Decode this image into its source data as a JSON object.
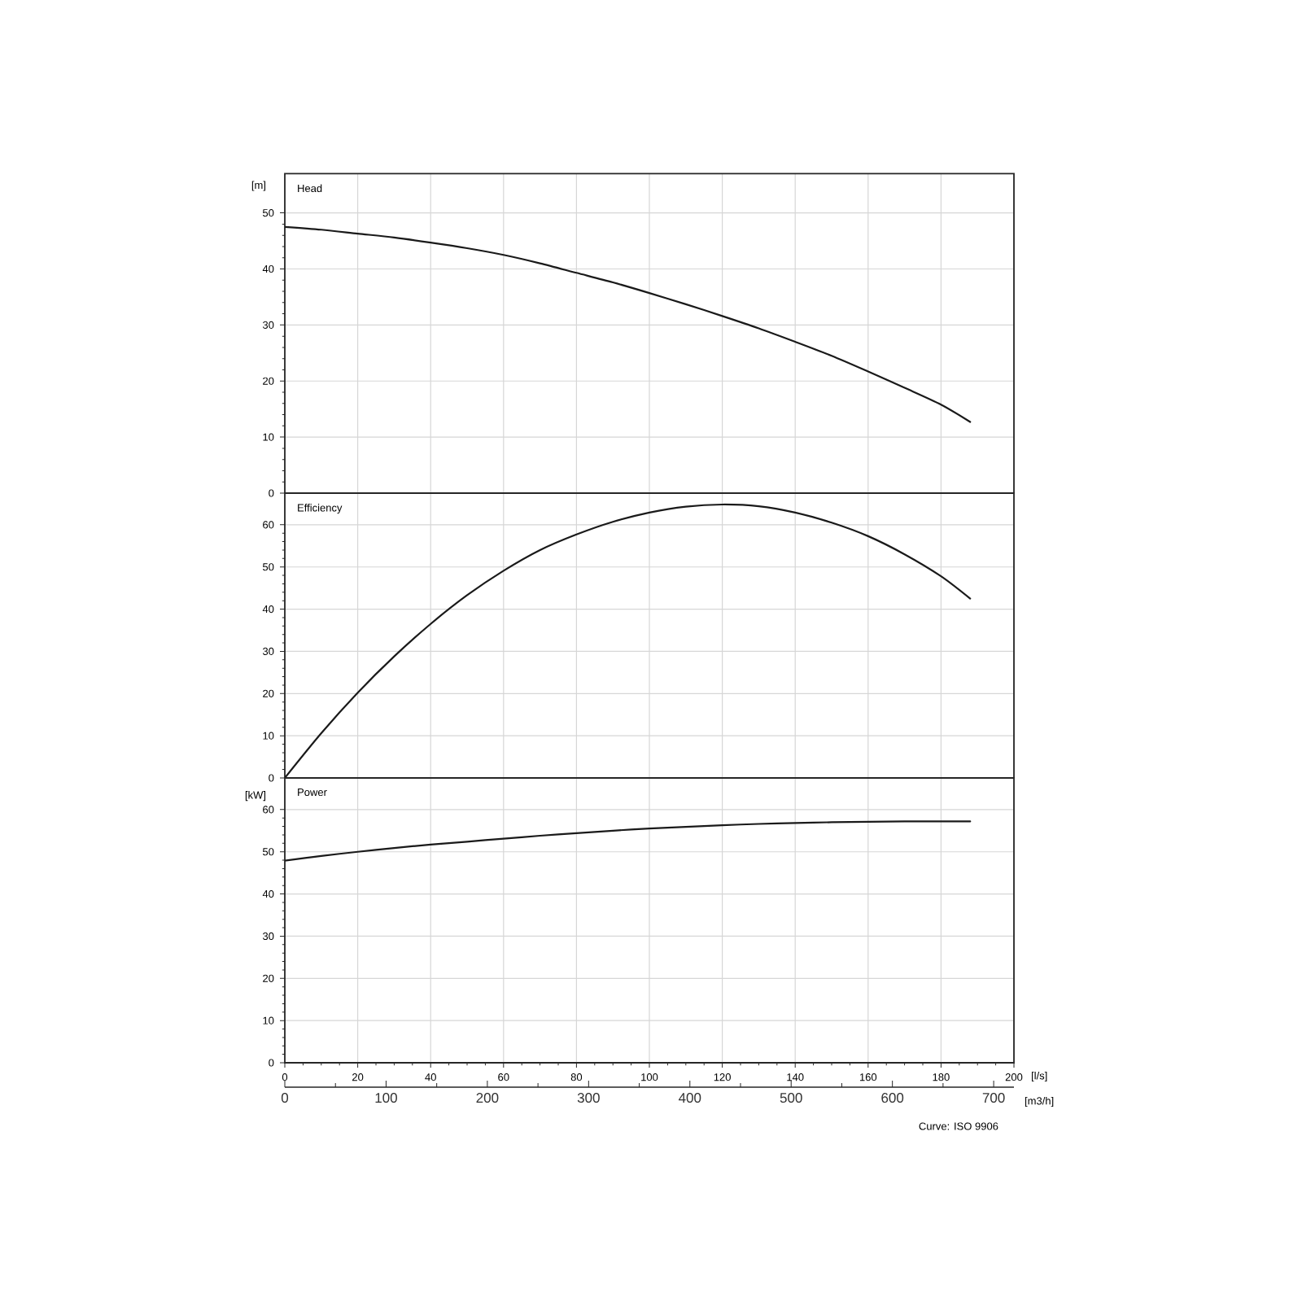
{
  "chart_data": [
    {
      "type": "line",
      "title": "Head",
      "ylabel": "[m]",
      "xlim": [
        0,
        200
      ],
      "ylim": [
        0,
        57
      ],
      "xticks": [
        0,
        20,
        40,
        60,
        80,
        100,
        120,
        140,
        160,
        180,
        200
      ],
      "yticks": [
        0,
        10,
        20,
        30,
        40,
        50
      ],
      "grid": true,
      "tick_labels": "y",
      "series": [
        {
          "color": "#1a1a1a",
          "x": [
            0,
            10,
            20,
            30,
            40,
            50,
            60,
            70,
            80,
            90,
            100,
            110,
            120,
            130,
            140,
            150,
            160,
            170,
            180,
            188
          ],
          "values": [
            47.5,
            47.0,
            46.3,
            45.6,
            44.7,
            43.7,
            42.5,
            41.0,
            39.3,
            37.6,
            35.7,
            33.7,
            31.6,
            29.4,
            27.0,
            24.5,
            21.7,
            18.8,
            15.8,
            12.7
          ]
        }
      ]
    },
    {
      "type": "line",
      "title": "Efficiency",
      "xlim": [
        0,
        200
      ],
      "ylim": [
        0,
        67.5
      ],
      "xticks": [
        0,
        20,
        40,
        60,
        80,
        100,
        120,
        140,
        160,
        180,
        200
      ],
      "yticks": [
        0,
        10,
        20,
        30,
        40,
        50,
        60
      ],
      "grid": true,
      "tick_labels": "y",
      "series": [
        {
          "color": "#1a1a1a",
          "x": [
            0,
            10,
            20,
            30,
            40,
            50,
            60,
            70,
            80,
            90,
            100,
            110,
            120,
            130,
            140,
            150,
            160,
            170,
            180,
            188
          ],
          "values": [
            0,
            10.6,
            20.2,
            28.8,
            36.5,
            43.3,
            49.1,
            54.0,
            57.7,
            60.7,
            62.9,
            64.3,
            64.8,
            64.4,
            62.9,
            60.5,
            57.3,
            53.0,
            47.8,
            42.5
          ]
        }
      ]
    },
    {
      "type": "line",
      "title": "Power",
      "ylabel": "[kW]",
      "xlabel": "[l/s]",
      "x2label": "[m3/h]",
      "xlim": [
        0,
        200
      ],
      "ylim": [
        0,
        67.5
      ],
      "xticks": [
        0,
        20,
        40,
        60,
        80,
        100,
        120,
        140,
        160,
        180,
        200
      ],
      "yticks": [
        0,
        10,
        20,
        30,
        40,
        50,
        60
      ],
      "x2lim": [
        0,
        720
      ],
      "x2ticks": [
        0,
        100,
        200,
        300,
        400,
        500,
        600,
        700
      ],
      "grid": true,
      "annotations": [
        "Curve: ISO 9906"
      ],
      "series": [
        {
          "color": "#1a1a1a",
          "x": [
            0,
            10,
            20,
            30,
            40,
            50,
            60,
            70,
            80,
            90,
            100,
            110,
            120,
            130,
            140,
            150,
            160,
            170,
            180,
            188
          ],
          "values": [
            47.9,
            49.0,
            50.0,
            50.9,
            51.7,
            52.4,
            53.1,
            53.8,
            54.4,
            55.0,
            55.5,
            55.9,
            56.3,
            56.6,
            56.8,
            57.0,
            57.1,
            57.2,
            57.2,
            57.2
          ]
        }
      ]
    }
  ]
}
